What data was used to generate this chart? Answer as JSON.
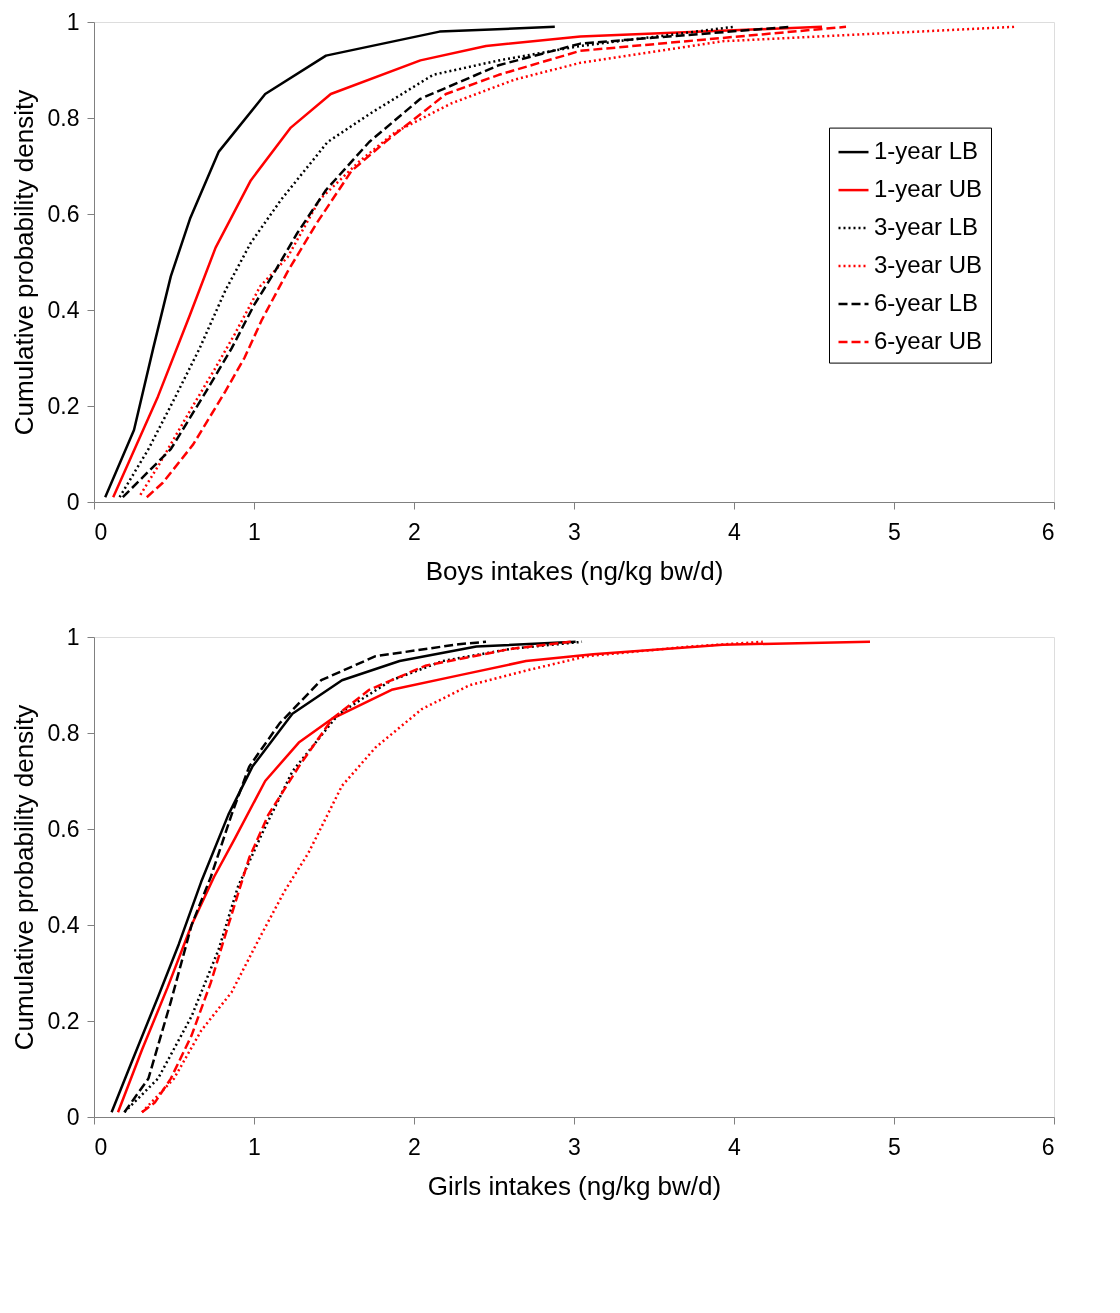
{
  "chart_data": [
    {
      "type": "line",
      "xlabel": "Boys intakes (ng/kg bw/d)",
      "ylabel": "Cumulative probability density",
      "xlim": [
        0,
        6
      ],
      "ylim": [
        0,
        1
      ],
      "xticks": [
        0,
        1,
        2,
        3,
        4,
        5,
        6
      ],
      "yticks": [
        0,
        0.2,
        0.4,
        0.6,
        0.8,
        1
      ],
      "grid": false,
      "legend": "right",
      "marker": "none",
      "series": [
        {
          "name": "1-year LB",
          "color": "#000000",
          "line_style": "solid",
          "x": [
            0.07,
            0.25,
            0.37,
            0.48,
            0.6,
            0.78,
            1.07,
            1.45,
            2.16,
            2.88
          ],
          "values": [
            0.01,
            0.15,
            0.32,
            0.47,
            0.59,
            0.73,
            0.85,
            0.93,
            0.98,
            0.99
          ]
        },
        {
          "name": "1-year UB",
          "color": "#ff0000",
          "line_style": "solid",
          "x": [
            0.12,
            0.4,
            0.6,
            0.76,
            0.98,
            1.23,
            1.48,
            2.04,
            2.45,
            3.04,
            4.55
          ],
          "values": [
            0.01,
            0.22,
            0.39,
            0.53,
            0.67,
            0.78,
            0.85,
            0.92,
            0.95,
            0.97,
            0.99
          ]
        },
        {
          "name": "3-year LB",
          "color": "#000000",
          "line_style": "dotted",
          "x": [
            0.16,
            0.34,
            0.51,
            0.66,
            0.82,
            0.98,
            1.17,
            1.46,
            1.73,
            2.12,
            2.53,
            3.04,
            4.0
          ],
          "values": [
            0.01,
            0.11,
            0.22,
            0.32,
            0.44,
            0.54,
            0.63,
            0.75,
            0.81,
            0.89,
            0.92,
            0.95,
            0.99
          ]
        },
        {
          "name": "3-year UB",
          "color": "#ff0000",
          "line_style": "dotted",
          "x": [
            0.29,
            0.41,
            0.6,
            0.76,
            0.88,
            1.04,
            1.21,
            1.41,
            1.66,
            1.88,
            2.23,
            2.63,
            3.04,
            3.93,
            5.76
          ],
          "values": [
            0.015,
            0.08,
            0.19,
            0.28,
            0.35,
            0.45,
            0.51,
            0.63,
            0.71,
            0.77,
            0.83,
            0.88,
            0.915,
            0.96,
            0.99
          ]
        },
        {
          "name": "6-year LB",
          "color": "#000000",
          "line_style": "dashed",
          "x": [
            0.18,
            0.33,
            0.48,
            0.7,
            0.86,
            1.0,
            1.13,
            1.27,
            1.45,
            1.72,
            2.04,
            2.53,
            3.04,
            4.35
          ],
          "values": [
            0.01,
            0.06,
            0.11,
            0.23,
            0.32,
            0.41,
            0.48,
            0.56,
            0.65,
            0.75,
            0.84,
            0.91,
            0.955,
            0.99
          ]
        },
        {
          "name": "6-year UB",
          "color": "#ff0000",
          "line_style": "dashed",
          "x": [
            0.33,
            0.43,
            0.62,
            0.82,
            0.94,
            1.05,
            1.21,
            1.39,
            1.61,
            1.82,
            2.2,
            2.53,
            3.04,
            4.7
          ],
          "values": [
            0.01,
            0.04,
            0.12,
            0.23,
            0.3,
            0.38,
            0.48,
            0.58,
            0.69,
            0.75,
            0.85,
            0.89,
            0.94,
            0.99
          ]
        }
      ]
    },
    {
      "type": "line",
      "xlabel": "Girls intakes (ng/kg bw/d)",
      "ylabel": "Cumulative probability density",
      "xlim": [
        0,
        6
      ],
      "ylim": [
        0,
        1
      ],
      "xticks": [
        0,
        1,
        2,
        3,
        4,
        5,
        6
      ],
      "yticks": [
        0,
        0.2,
        0.4,
        0.6,
        0.8,
        1
      ],
      "grid": false,
      "legend": "right",
      "marker": "none",
      "series": [
        {
          "name": "1-year LB",
          "color": "#000000",
          "line_style": "solid",
          "x": [
            0.11,
            0.23,
            0.4,
            0.53,
            0.67,
            0.84,
            0.99,
            1.24,
            1.55,
            1.91,
            2.39,
            3.01
          ],
          "values": [
            0.01,
            0.11,
            0.25,
            0.36,
            0.49,
            0.63,
            0.73,
            0.84,
            0.91,
            0.95,
            0.98,
            0.99
          ]
        },
        {
          "name": "1-year UB",
          "color": "#ff0000",
          "line_style": "solid",
          "x": [
            0.15,
            0.3,
            0.46,
            0.61,
            0.75,
            0.88,
            1.07,
            1.28,
            1.49,
            1.86,
            2.28,
            2.7,
            3.12,
            3.93,
            4.85
          ],
          "values": [
            0.01,
            0.14,
            0.27,
            0.4,
            0.5,
            0.58,
            0.7,
            0.78,
            0.83,
            0.89,
            0.92,
            0.95,
            0.964,
            0.984,
            0.99
          ]
        },
        {
          "name": "3-year LB",
          "color": "#000000",
          "line_style": "dotted",
          "x": [
            0.19,
            0.4,
            0.61,
            0.78,
            0.9,
            1.05,
            1.24,
            1.53,
            1.86,
            2.18,
            2.6,
            3.05
          ],
          "values": [
            0.01,
            0.08,
            0.21,
            0.35,
            0.48,
            0.59,
            0.72,
            0.84,
            0.91,
            0.95,
            0.975,
            0.99
          ]
        },
        {
          "name": "3-year UB",
          "color": "#ff0000",
          "line_style": "dotted",
          "x": [
            0.3,
            0.5,
            0.67,
            0.86,
            1.03,
            1.19,
            1.34,
            1.55,
            1.76,
            2.05,
            2.35,
            2.7,
            3.08,
            3.72,
            4.18
          ],
          "values": [
            0.01,
            0.08,
            0.18,
            0.26,
            0.37,
            0.47,
            0.55,
            0.69,
            0.77,
            0.85,
            0.9,
            0.93,
            0.96,
            0.98,
            0.99
          ]
        },
        {
          "name": "6-year LB",
          "color": "#000000",
          "line_style": "dashed",
          "x": [
            0.19,
            0.34,
            0.48,
            0.61,
            0.73,
            0.86,
            0.97,
            1.16,
            1.42,
            1.76,
            2.28,
            2.45
          ],
          "values": [
            0.01,
            0.08,
            0.24,
            0.4,
            0.5,
            0.63,
            0.73,
            0.82,
            0.91,
            0.96,
            0.985,
            0.99
          ]
        },
        {
          "name": "6-year UB",
          "color": "#ff0000",
          "line_style": "dashed",
          "x": [
            0.3,
            0.38,
            0.48,
            0.61,
            0.73,
            0.84,
            0.97,
            1.09,
            1.28,
            1.49,
            1.72,
            2.07,
            2.6,
            2.98
          ],
          "values": [
            0.01,
            0.03,
            0.08,
            0.17,
            0.28,
            0.4,
            0.54,
            0.63,
            0.73,
            0.83,
            0.89,
            0.94,
            0.975,
            0.99
          ]
        }
      ]
    }
  ]
}
